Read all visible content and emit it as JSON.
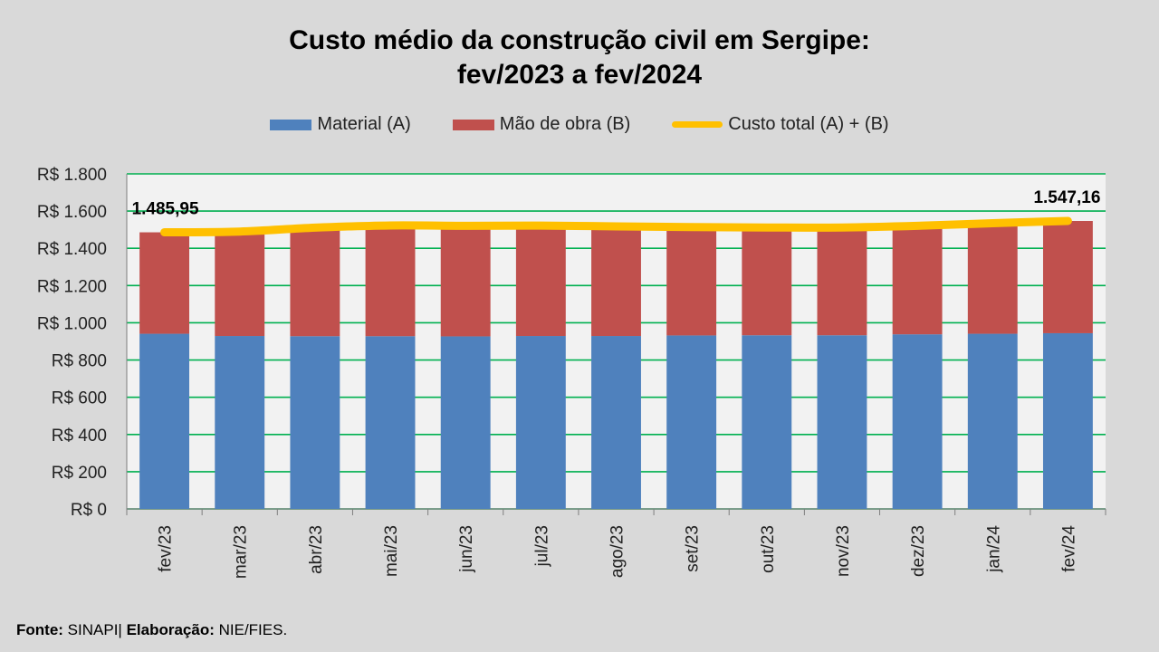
{
  "title_line1": "Custo médio da construção civil em Sergipe:",
  "title_line2": "fev/2023 a fev/2024",
  "footer": {
    "source_label": "Fonte:",
    "source_value": "SINAPI|",
    "elab_label": "Elaboração:",
    "elab_value": "NIE/FIES."
  },
  "colors": {
    "material": "#4f81bd",
    "labor": "#c0504d",
    "total": "#ffc000",
    "grid": "#00b050"
  },
  "chart_data": {
    "type": "bar",
    "stacked": true,
    "title": "Custo médio da construção civil em Sergipe: fev/2023 a fev/2024",
    "categories": [
      "fev/23",
      "mar/23",
      "abr/23",
      "mai/23",
      "jun/23",
      "jul/23",
      "ago/23",
      "set/23",
      "out/23",
      "nov/23",
      "dez/23",
      "jan/24",
      "fev/24"
    ],
    "series": [
      {
        "name": "Material (A)",
        "type": "bar",
        "values": [
          941,
          929,
          928,
          928,
          927,
          929,
          929,
          932,
          933,
          933,
          938,
          941,
          944
        ]
      },
      {
        "name": "Mão de obra (B)",
        "type": "bar",
        "values": [
          545,
          561,
          583,
          595,
          594,
          593,
          589,
          582,
          579,
          579,
          583,
          594,
          603
        ]
      },
      {
        "name": "Custo total (A) + (B)",
        "type": "line",
        "values": [
          1485.95,
          1490,
          1511,
          1523,
          1521,
          1522,
          1518,
          1514,
          1512,
          1512,
          1521,
          1535,
          1547.16
        ]
      }
    ],
    "data_labels": {
      "first": "1.485,95",
      "last": "1.547,16"
    },
    "ylim": [
      0,
      1800
    ],
    "yticks": [
      0,
      200,
      400,
      600,
      800,
      1000,
      1200,
      1400,
      1600,
      1800
    ],
    "ytick_labels": [
      "R$ 0",
      "R$ 200",
      "R$ 400",
      "R$ 600",
      "R$ 800",
      "R$ 1.000",
      "R$ 1.200",
      "R$ 1.400",
      "R$ 1.600",
      "R$ 1.800"
    ],
    "grid": true,
    "legend_position": "top"
  }
}
